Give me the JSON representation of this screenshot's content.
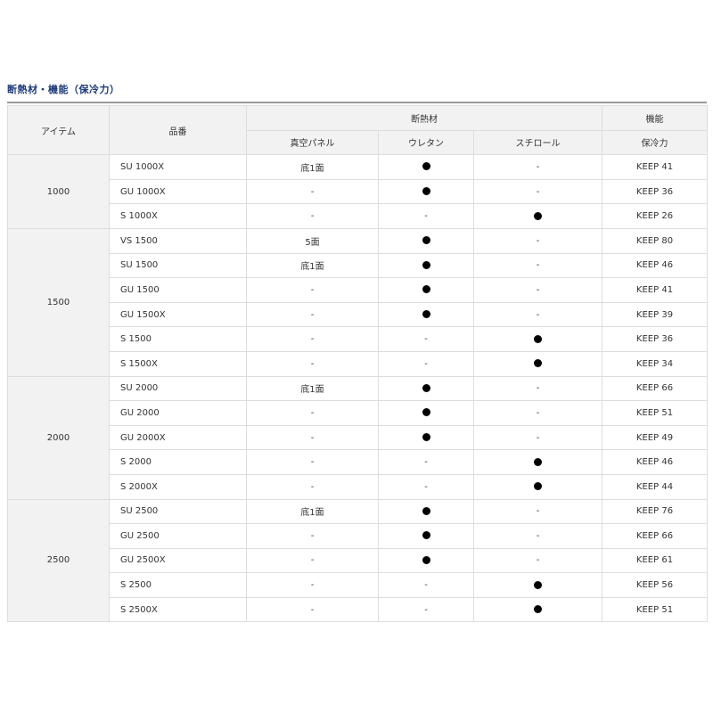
{
  "title": "断熱材・機能（保冷力）",
  "headers": {
    "item": "アイテム",
    "code": "品番",
    "insulation": "断熱材",
    "function": "機能",
    "vacuum": "真空パネル",
    "urethane": "ウレタン",
    "styrofoam": "スチロール",
    "keep": "保冷力"
  },
  "groups": [
    {
      "item": "1000",
      "rows": [
        {
          "code": "SU 1000X",
          "vacuum": "底1面",
          "urethane": "●",
          "styrofoam": "-",
          "keep": "KEEP 41"
        },
        {
          "code": "GU 1000X",
          "vacuum": "-",
          "urethane": "●",
          "styrofoam": "-",
          "keep": "KEEP 36"
        },
        {
          "code": "S 1000X",
          "vacuum": "-",
          "urethane": "-",
          "styrofoam": "●",
          "keep": "KEEP 26"
        }
      ]
    },
    {
      "item": "1500",
      "rows": [
        {
          "code": "VS 1500",
          "vacuum": "5面",
          "urethane": "●",
          "styrofoam": "-",
          "keep": "KEEP 80"
        },
        {
          "code": "SU 1500",
          "vacuum": "底1面",
          "urethane": "●",
          "styrofoam": "-",
          "keep": "KEEP 46"
        },
        {
          "code": "GU 1500",
          "vacuum": "-",
          "urethane": "●",
          "styrofoam": "-",
          "keep": "KEEP 41"
        },
        {
          "code": "GU 1500X",
          "vacuum": "-",
          "urethane": "●",
          "styrofoam": "-",
          "keep": "KEEP 39"
        },
        {
          "code": "S 1500",
          "vacuum": "-",
          "urethane": "-",
          "styrofoam": "●",
          "keep": "KEEP 36"
        },
        {
          "code": "S 1500X",
          "vacuum": "-",
          "urethane": "-",
          "styrofoam": "●",
          "keep": "KEEP 34"
        }
      ]
    },
    {
      "item": "2000",
      "rows": [
        {
          "code": "SU 2000",
          "vacuum": "底1面",
          "urethane": "●",
          "styrofoam": "-",
          "keep": "KEEP 66"
        },
        {
          "code": "GU 2000",
          "vacuum": "-",
          "urethane": "●",
          "styrofoam": "-",
          "keep": "KEEP 51"
        },
        {
          "code": "GU 2000X",
          "vacuum": "-",
          "urethane": "●",
          "styrofoam": "-",
          "keep": "KEEP 49"
        },
        {
          "code": "S 2000",
          "vacuum": "-",
          "urethane": "-",
          "styrofoam": "●",
          "keep": "KEEP 46"
        },
        {
          "code": "S 2000X",
          "vacuum": "-",
          "urethane": "-",
          "styrofoam": "●",
          "keep": "KEEP 44"
        }
      ]
    },
    {
      "item": "2500",
      "rows": [
        {
          "code": "SU 2500",
          "vacuum": "底1面",
          "urethane": "●",
          "styrofoam": "-",
          "keep": "KEEP 76"
        },
        {
          "code": "GU 2500",
          "vacuum": "-",
          "urethane": "●",
          "styrofoam": "-",
          "keep": "KEEP 66"
        },
        {
          "code": "GU 2500X",
          "vacuum": "-",
          "urethane": "●",
          "styrofoam": "-",
          "keep": "KEEP 61"
        },
        {
          "code": "S 2500",
          "vacuum": "-",
          "urethane": "-",
          "styrofoam": "●",
          "keep": "KEEP 56"
        },
        {
          "code": "S 2500X",
          "vacuum": "-",
          "urethane": "-",
          "styrofoam": "●",
          "keep": "KEEP 51"
        }
      ]
    }
  ]
}
